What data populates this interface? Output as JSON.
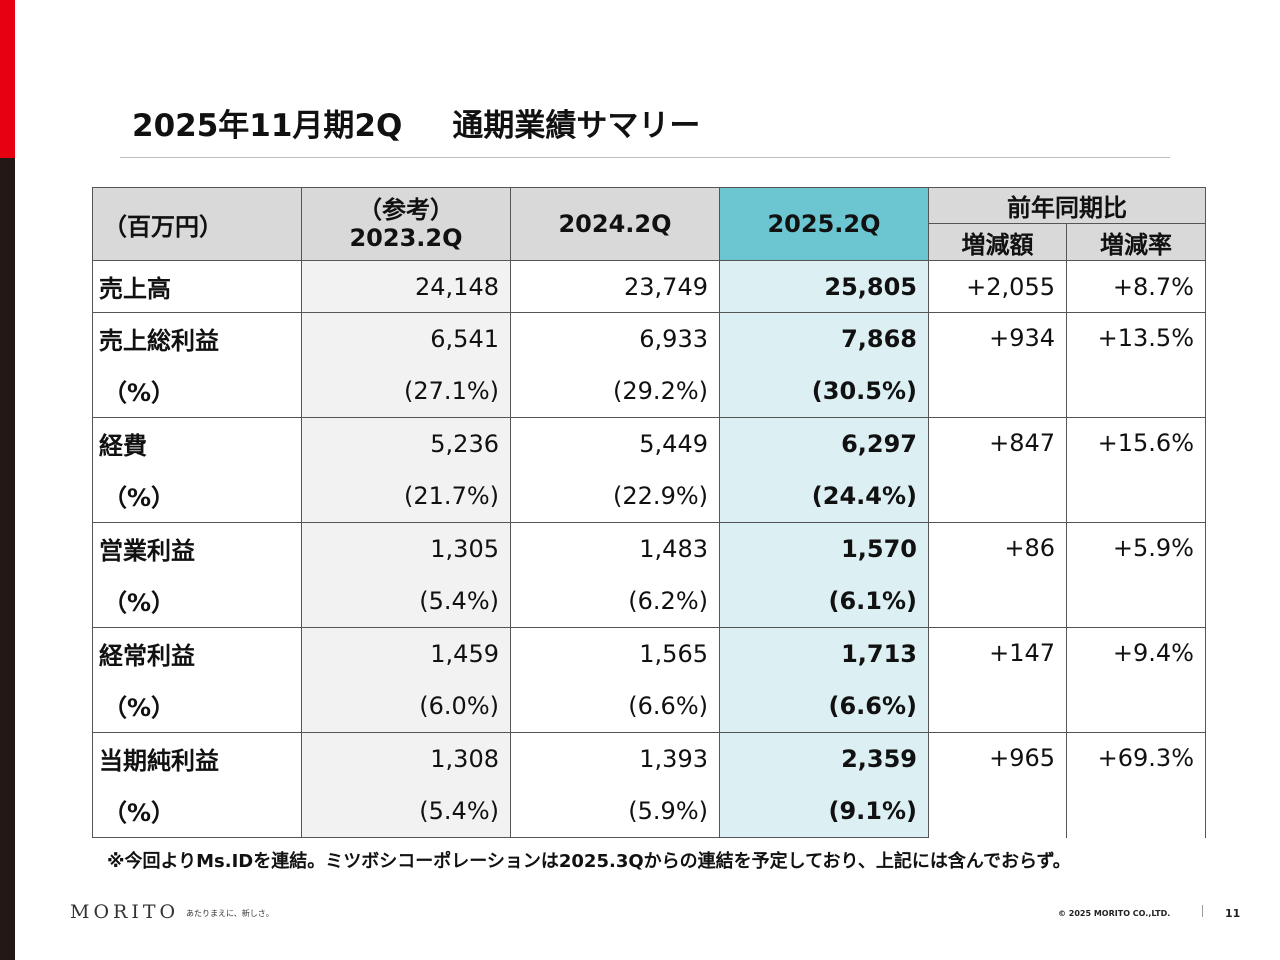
{
  "title": {
    "period": "2025年11月期2Q",
    "subtitle": "通期業績サマリー"
  },
  "table": {
    "unit_label": "（百万円）",
    "col_ref_label": "（参考）",
    "col_2023": "2023.2Q",
    "col_2024": "2024.2Q",
    "col_2025": "2025.2Q",
    "col_yoy": "前年同期比",
    "col_diff": "増減額",
    "col_rate": "増減率",
    "rows": [
      {
        "label": "売上高",
        "v2023": "24,148",
        "v2024": "23,749",
        "v2025": "25,805",
        "diff": "+2,055",
        "rate": "+8.7%"
      },
      {
        "label": "売上総利益",
        "v2023": "6,541",
        "v2024": "6,933",
        "v2025": "7,868",
        "diff": "+934",
        "rate": "+13.5%",
        "pct_label": "（%）",
        "p2023": "(27.1%)",
        "p2024": "(29.2%)",
        "p2025": "(30.5%)"
      },
      {
        "label": "経費",
        "v2023": "5,236",
        "v2024": "5,449",
        "v2025": "6,297",
        "diff": "+847",
        "rate": "+15.6%",
        "pct_label": "（%）",
        "p2023": "(21.7%)",
        "p2024": "(22.9%)",
        "p2025": "(24.4%)"
      },
      {
        "label": "営業利益",
        "v2023": "1,305",
        "v2024": "1,483",
        "v2025": "1,570",
        "diff": "+86",
        "rate": "+5.9%",
        "pct_label": "（%）",
        "p2023": "(5.4%)",
        "p2024": "(6.2%)",
        "p2025": "(6.1%)"
      },
      {
        "label": "経常利益",
        "v2023": "1,459",
        "v2024": "1,565",
        "v2025": "1,713",
        "diff": "+147",
        "rate": "+9.4%",
        "pct_label": "（%）",
        "p2023": "(6.0%)",
        "p2024": "(6.6%)",
        "p2025": "(6.6%)"
      },
      {
        "label": "当期純利益",
        "v2023": "1,308",
        "v2024": "1,393",
        "v2025": "2,359",
        "diff": "+965",
        "rate": "+69.3%",
        "pct_label": "（%）",
        "p2023": "(5.4%)",
        "p2024": "(5.9%)",
        "p2025": "(9.1%)"
      }
    ]
  },
  "note": "※今回よりMs.IDを連結。ミツボシコーポレーションは2025.3Qからの連結を予定しており、上記には含んでおらず。",
  "footer": {
    "logo": "MORITO",
    "tagline": "あたりまえに、新しさ。",
    "copyright": "© 2025 MORITO CO.,LTD.",
    "page_number": "11"
  },
  "colors": {
    "brand_red": "#e60012",
    "side_dark": "#231815",
    "highlight_header": "#6cc6d1",
    "highlight_col": "#dceff3",
    "header_gray": "#d9d9d9"
  }
}
